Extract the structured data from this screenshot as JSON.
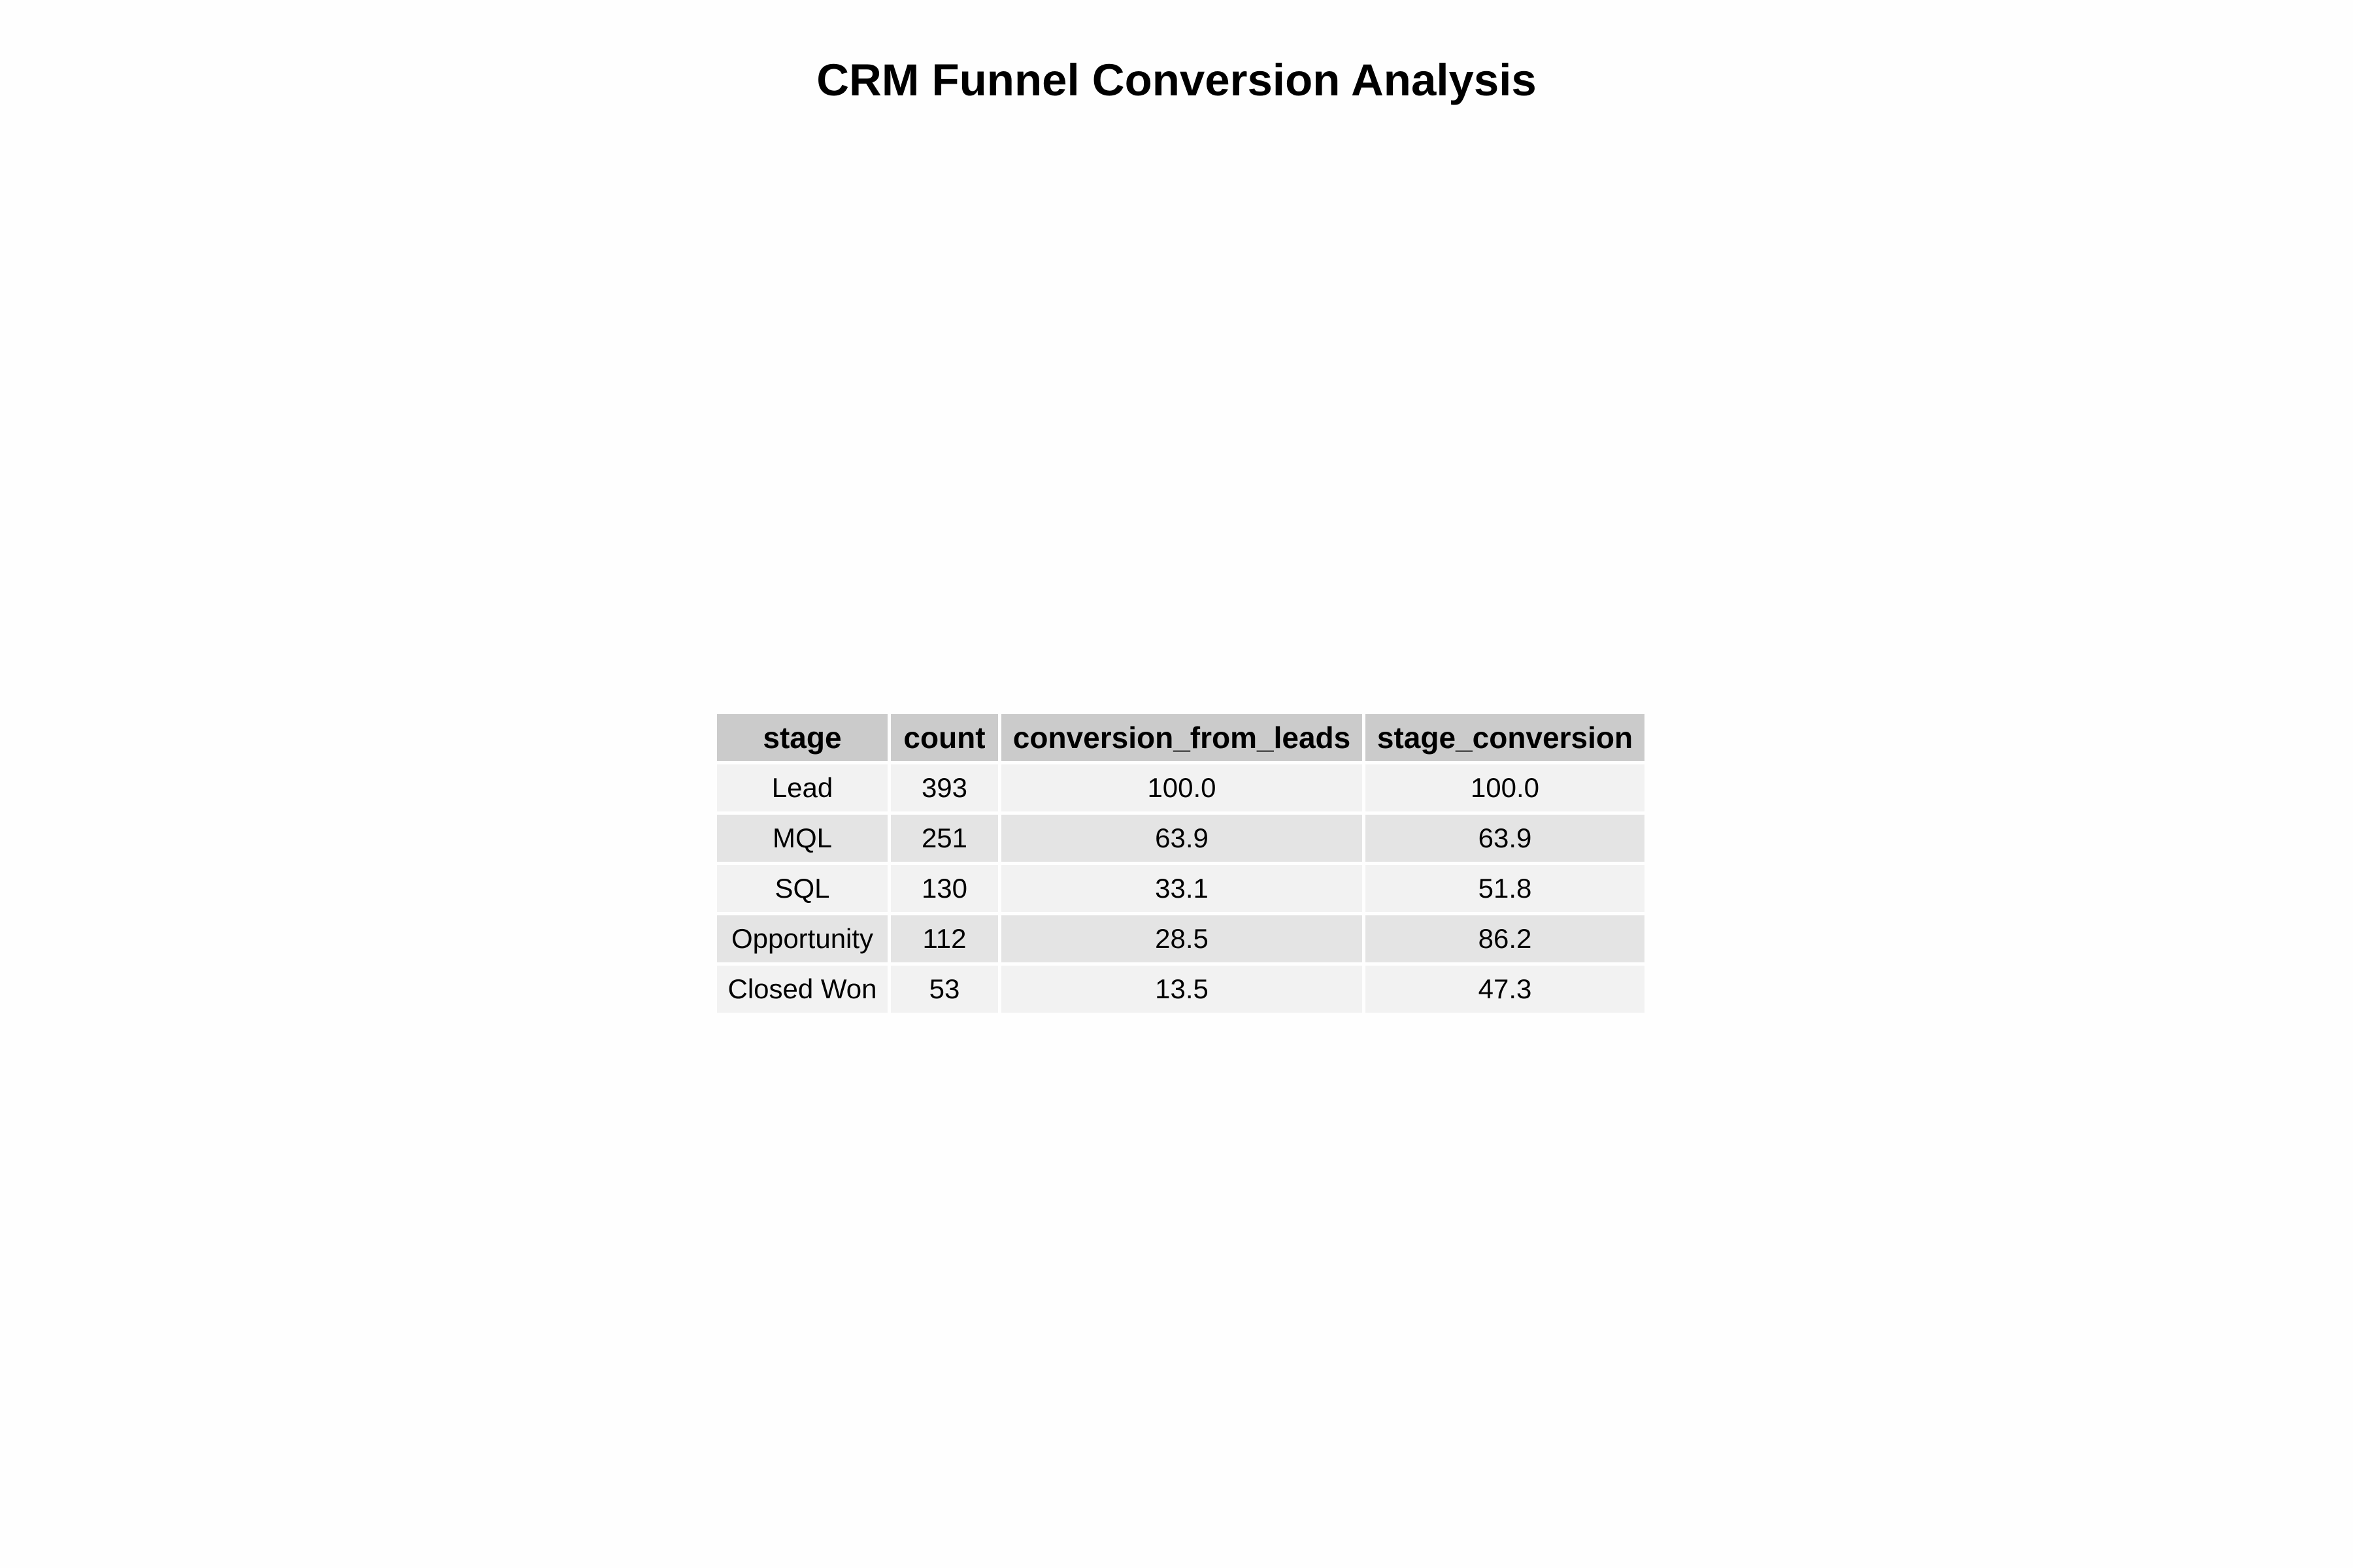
{
  "title": "CRM Funnel Conversion Analysis",
  "chart_data": {
    "type": "table",
    "title": "CRM Funnel Conversion Analysis",
    "columns": [
      "stage",
      "count",
      "conversion_from_leads",
      "stage_conversion"
    ],
    "rows": [
      [
        "Lead",
        "393",
        "100.0",
        "100.0"
      ],
      [
        "MQL",
        "251",
        "63.9",
        "63.9"
      ],
      [
        "SQL",
        "130",
        "33.1",
        "51.8"
      ],
      [
        "Opportunity",
        "112",
        "28.5",
        "86.2"
      ],
      [
        "Closed Won",
        "53",
        "13.5",
        "47.3"
      ]
    ]
  },
  "colors": {
    "header_bg": "#cbcbcb",
    "row_light": "#f2f2f2",
    "row_dark": "#e4e4e4"
  }
}
